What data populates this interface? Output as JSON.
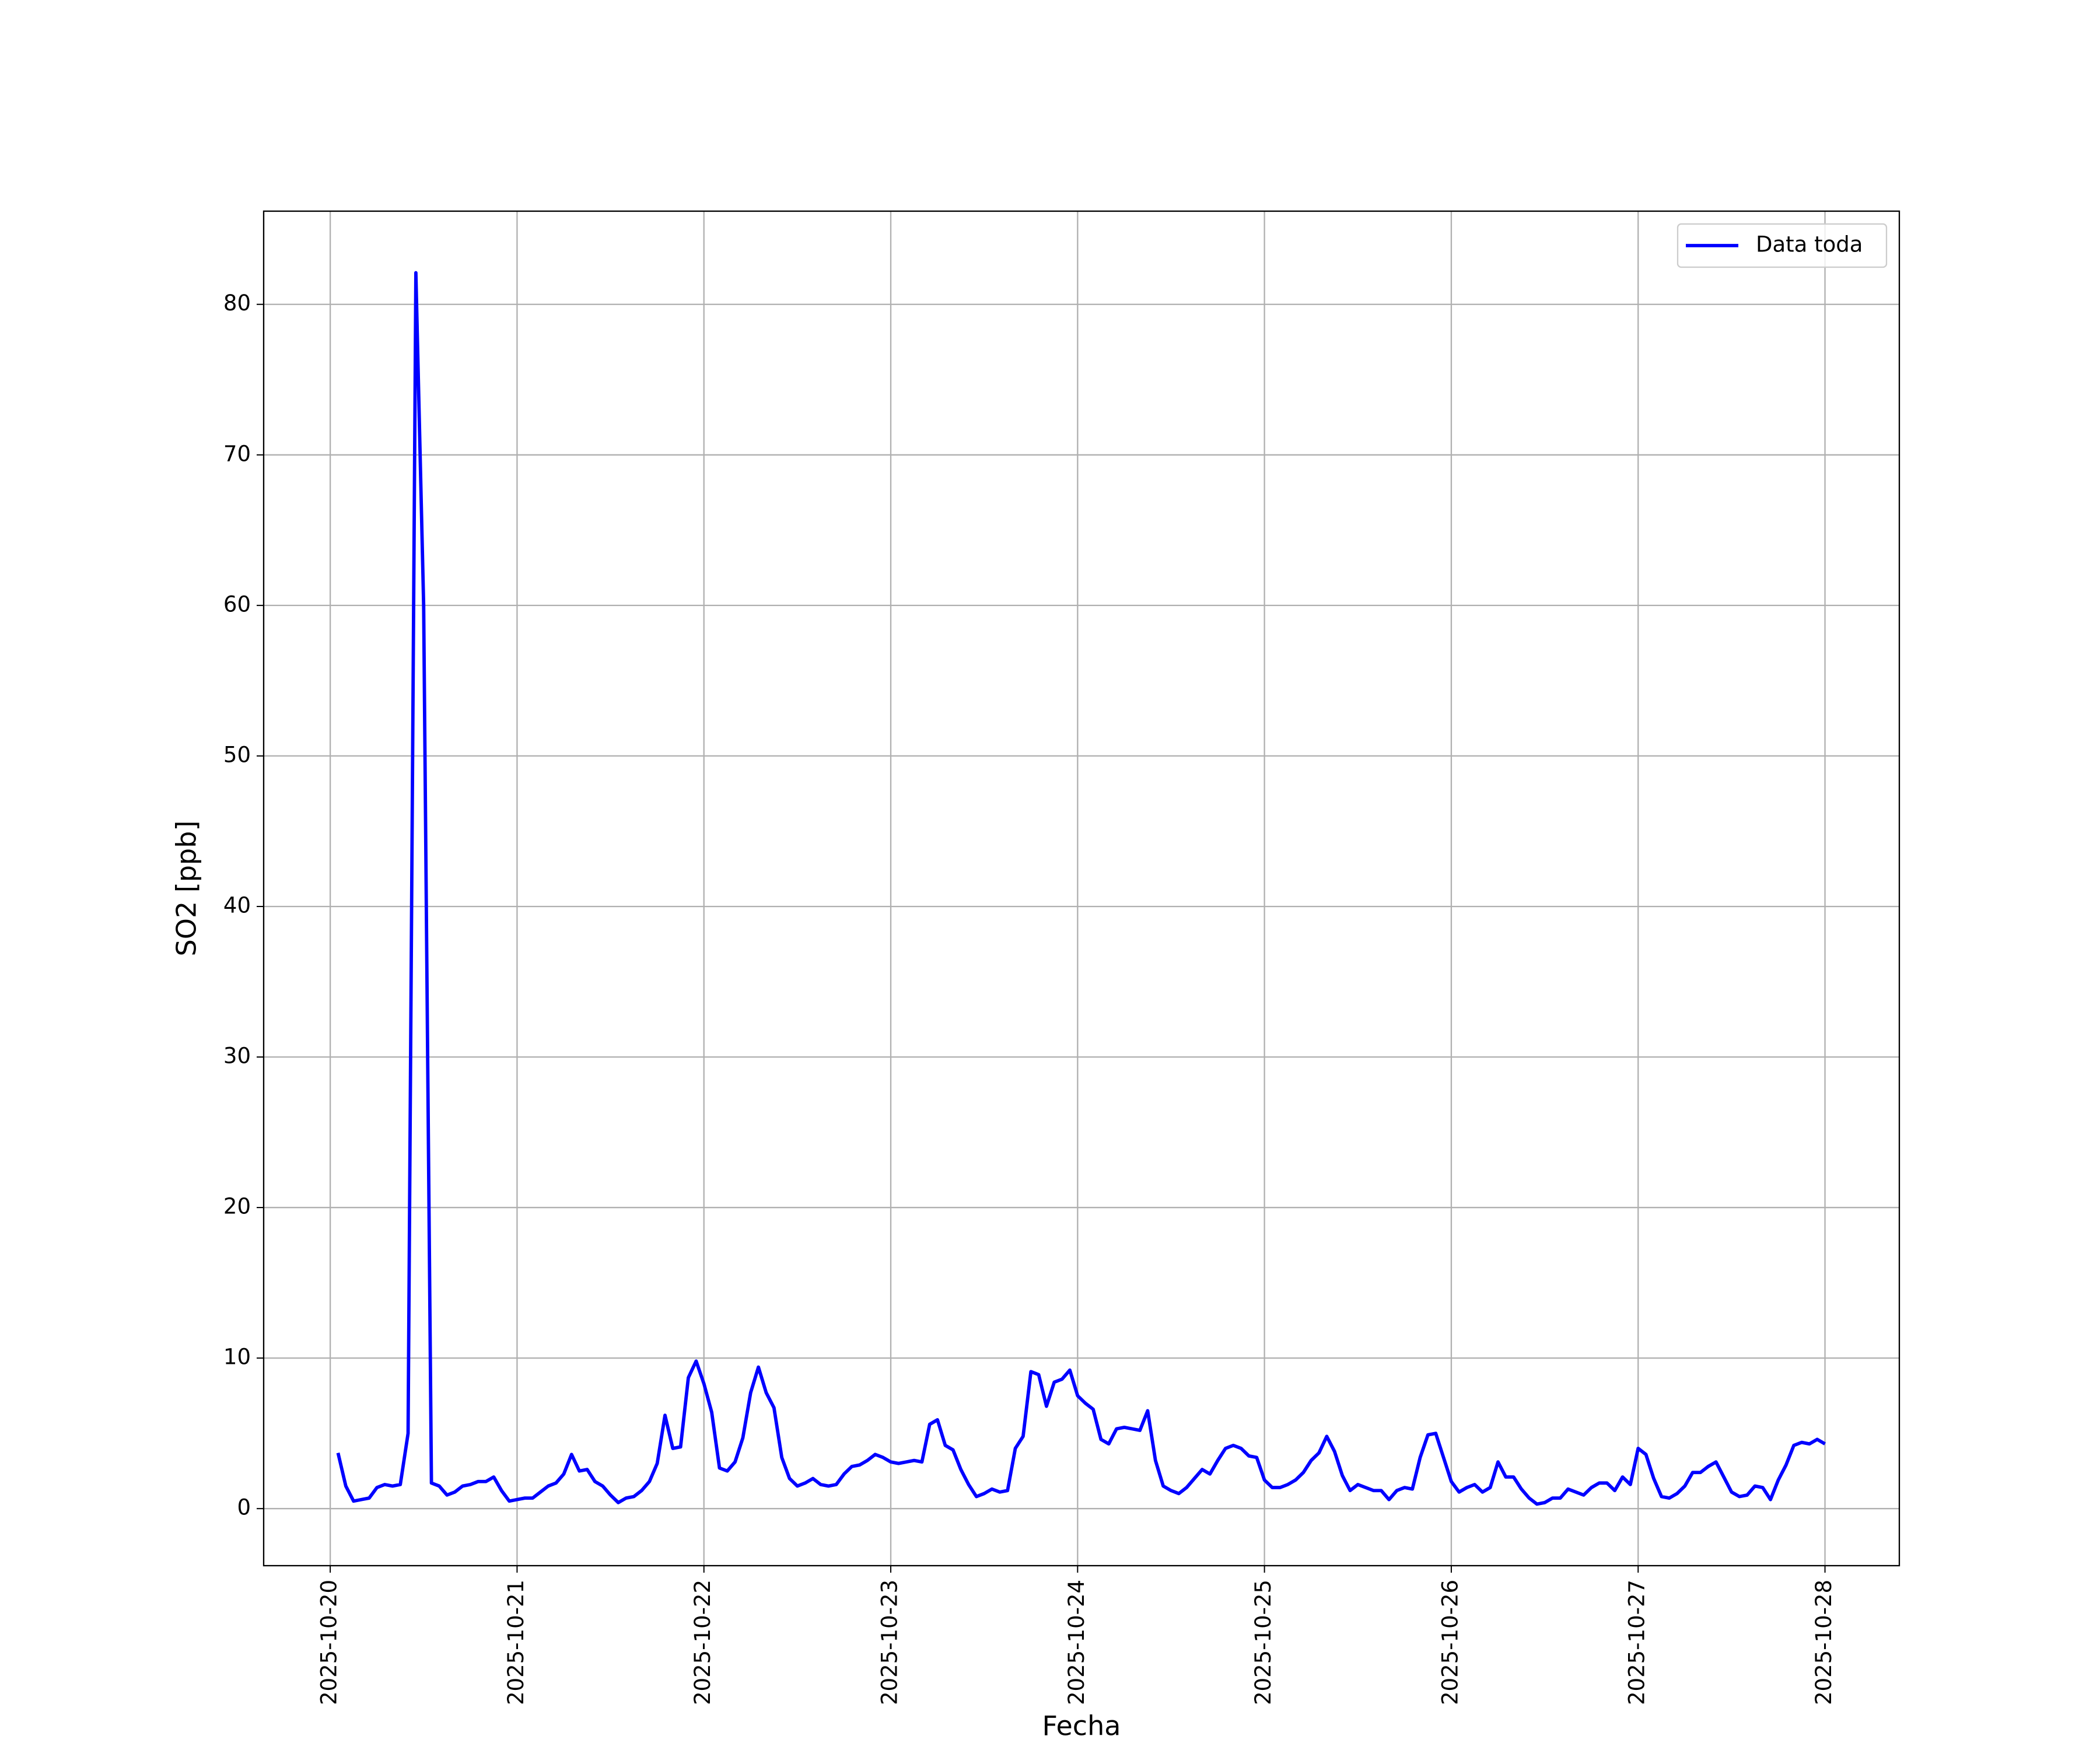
{
  "chart_data": {
    "type": "line",
    "xlabel": "Fecha",
    "ylabel": "SO2 [ppb]",
    "x": [
      "2025-10-20 01:00",
      "2025-10-20 02:00",
      "2025-10-20 03:00",
      "2025-10-20 04:00",
      "2025-10-20 05:00",
      "2025-10-20 06:00",
      "2025-10-20 07:00",
      "2025-10-20 08:00",
      "2025-10-20 09:00",
      "2025-10-20 10:00",
      "2025-10-20 11:00",
      "2025-10-20 12:00",
      "2025-10-20 13:00",
      "2025-10-20 14:00",
      "2025-10-20 15:00",
      "2025-10-20 16:00",
      "2025-10-20 17:00",
      "2025-10-20 18:00",
      "2025-10-20 19:00",
      "2025-10-20 20:00",
      "2025-10-20 21:00",
      "2025-10-20 22:00",
      "2025-10-20 23:00",
      "2025-10-21 00:00",
      "2025-10-21 01:00",
      "2025-10-21 02:00",
      "2025-10-21 03:00",
      "2025-10-21 04:00",
      "2025-10-21 05:00",
      "2025-10-21 06:00",
      "2025-10-21 07:00",
      "2025-10-21 08:00",
      "2025-10-21 09:00",
      "2025-10-21 10:00",
      "2025-10-21 11:00",
      "2025-10-21 12:00",
      "2025-10-21 13:00",
      "2025-10-21 14:00",
      "2025-10-21 15:00",
      "2025-10-21 16:00",
      "2025-10-21 17:00",
      "2025-10-21 18:00",
      "2025-10-21 19:00",
      "2025-10-21 20:00",
      "2025-10-21 21:00",
      "2025-10-21 22:00",
      "2025-10-21 23:00",
      "2025-10-22 00:00",
      "2025-10-22 01:00",
      "2025-10-22 02:00",
      "2025-10-22 03:00",
      "2025-10-22 04:00",
      "2025-10-22 05:00",
      "2025-10-22 06:00",
      "2025-10-22 07:00",
      "2025-10-22 08:00",
      "2025-10-22 09:00",
      "2025-10-22 10:00",
      "2025-10-22 11:00",
      "2025-10-22 12:00",
      "2025-10-22 13:00",
      "2025-10-22 14:00",
      "2025-10-22 15:00",
      "2025-10-22 16:00",
      "2025-10-22 17:00",
      "2025-10-22 18:00",
      "2025-10-22 19:00",
      "2025-10-22 20:00",
      "2025-10-22 21:00",
      "2025-10-22 22:00",
      "2025-10-22 23:00",
      "2025-10-23 00:00",
      "2025-10-23 01:00",
      "2025-10-23 02:00",
      "2025-10-23 03:00",
      "2025-10-23 04:00",
      "2025-10-23 05:00",
      "2025-10-23 06:00",
      "2025-10-23 07:00",
      "2025-10-23 08:00",
      "2025-10-23 09:00",
      "2025-10-23 10:00",
      "2025-10-23 11:00",
      "2025-10-23 12:00",
      "2025-10-23 13:00",
      "2025-10-23 14:00",
      "2025-10-23 15:00",
      "2025-10-23 16:00",
      "2025-10-23 17:00",
      "2025-10-23 18:00",
      "2025-10-23 19:00",
      "2025-10-23 20:00",
      "2025-10-23 21:00",
      "2025-10-23 22:00",
      "2025-10-23 23:00",
      "2025-10-24 00:00",
      "2025-10-24 01:00",
      "2025-10-24 02:00",
      "2025-10-24 03:00",
      "2025-10-24 04:00",
      "2025-10-24 05:00",
      "2025-10-24 06:00",
      "2025-10-24 07:00",
      "2025-10-24 08:00",
      "2025-10-24 09:00",
      "2025-10-24 10:00",
      "2025-10-24 11:00",
      "2025-10-24 12:00",
      "2025-10-24 13:00",
      "2025-10-24 14:00",
      "2025-10-24 15:00",
      "2025-10-24 16:00",
      "2025-10-24 17:00",
      "2025-10-24 18:00",
      "2025-10-24 19:00",
      "2025-10-24 20:00",
      "2025-10-24 21:00",
      "2025-10-24 22:00",
      "2025-10-24 23:00",
      "2025-10-25 00:00",
      "2025-10-25 01:00",
      "2025-10-25 02:00",
      "2025-10-25 03:00",
      "2025-10-25 04:00",
      "2025-10-25 05:00",
      "2025-10-25 06:00",
      "2025-10-25 07:00",
      "2025-10-25 08:00",
      "2025-10-25 09:00",
      "2025-10-25 10:00",
      "2025-10-25 11:00",
      "2025-10-25 12:00",
      "2025-10-25 13:00",
      "2025-10-25 14:00",
      "2025-10-25 15:00",
      "2025-10-25 16:00",
      "2025-10-25 17:00",
      "2025-10-25 18:00",
      "2025-10-25 19:00",
      "2025-10-25 20:00",
      "2025-10-25 21:00",
      "2025-10-25 22:00",
      "2025-10-25 23:00",
      "2025-10-26 00:00",
      "2025-10-26 01:00",
      "2025-10-26 02:00",
      "2025-10-26 03:00",
      "2025-10-26 04:00",
      "2025-10-26 05:00",
      "2025-10-26 06:00",
      "2025-10-26 07:00",
      "2025-10-26 08:00",
      "2025-10-26 09:00",
      "2025-10-26 10:00",
      "2025-10-26 11:00",
      "2025-10-26 12:00",
      "2025-10-26 13:00",
      "2025-10-26 14:00",
      "2025-10-26 15:00",
      "2025-10-26 16:00",
      "2025-10-26 17:00",
      "2025-10-26 18:00",
      "2025-10-26 19:00",
      "2025-10-26 20:00",
      "2025-10-26 21:00",
      "2025-10-26 22:00",
      "2025-10-26 23:00",
      "2025-10-27 00:00",
      "2025-10-27 01:00",
      "2025-10-27 02:00",
      "2025-10-27 03:00",
      "2025-10-27 04:00",
      "2025-10-27 05:00",
      "2025-10-27 06:00",
      "2025-10-27 07:00",
      "2025-10-27 08:00",
      "2025-10-27 09:00",
      "2025-10-27 10:00",
      "2025-10-27 11:00",
      "2025-10-27 12:00",
      "2025-10-27 13:00",
      "2025-10-27 14:00",
      "2025-10-27 15:00",
      "2025-10-27 16:00",
      "2025-10-27 17:00",
      "2025-10-27 18:00",
      "2025-10-27 19:00",
      "2025-10-27 20:00",
      "2025-10-27 21:00",
      "2025-10-27 22:00",
      "2025-10-27 23:00",
      "2025-10-28 00:00"
    ],
    "series": [
      {
        "name": "Data toda",
        "color": "#0000ff",
        "values": [
          3.7,
          1.5,
          0.5,
          0.6,
          0.7,
          1.4,
          1.6,
          1.5,
          1.6,
          5.0,
          82.1,
          60,
          1.7,
          1.5,
          0.9,
          1.1,
          1.5,
          1.6,
          1.8,
          1.8,
          2.1,
          1.2,
          0.5,
          0.6,
          0.7,
          0.7,
          1.1,
          1.5,
          1.7,
          2.3,
          3.6,
          2.5,
          2.6,
          1.8,
          1.5,
          0.9,
          0.4,
          0.7,
          0.8,
          1.2,
          1.8,
          3.0,
          6.2,
          4.0,
          4.1,
          8.7,
          9.8,
          8.3,
          6.4,
          2.7,
          2.5,
          3.1,
          4.7,
          7.7,
          9.4,
          7.7,
          6.7,
          3.4,
          2.0,
          1.5,
          1.7,
          2.0,
          1.6,
          1.5,
          1.6,
          2.3,
          2.8,
          2.9,
          3.2,
          3.6,
          3.4,
          3.1,
          3.0,
          3.1,
          3.2,
          3.1,
          5.6,
          5.9,
          4.2,
          3.9,
          2.6,
          1.6,
          0.8,
          1.0,
          1.3,
          1.1,
          1.2,
          4.0,
          4.8,
          9.1,
          8.9,
          6.8,
          8.4,
          8.6,
          9.2,
          7.5,
          7.0,
          6.6,
          4.6,
          4.3,
          5.3,
          5.4,
          5.3,
          5.2,
          6.5,
          3.2,
          1.5,
          1.2,
          1.0,
          1.4,
          2.0,
          2.6,
          2.3,
          3.2,
          4.0,
          4.2,
          4.0,
          3.5,
          3.4,
          1.9,
          1.4,
          1.4,
          1.6,
          1.9,
          2.4,
          3.2,
          3.7,
          4.8,
          3.8,
          2.2,
          1.2,
          1.6,
          1.4,
          1.2,
          1.2,
          0.6,
          1.2,
          1.4,
          1.3,
          3.4,
          4.9,
          5.0,
          3.4,
          1.8,
          1.1,
          1.4,
          1.6,
          1.1,
          1.4,
          3.1,
          2.1,
          2.1,
          1.3,
          0.7,
          0.3,
          0.4,
          0.7,
          0.7,
          1.3,
          1.1,
          0.9,
          1.4,
          1.7,
          1.7,
          1.2,
          2.1,
          1.6,
          4.0,
          3.6,
          2.0,
          0.8,
          0.7,
          1.0,
          1.5,
          2.4,
          2.4,
          2.8,
          3.1,
          2.1,
          1.1,
          0.8,
          0.9,
          1.5,
          1.4,
          0.6,
          1.9,
          2.9,
          4.2,
          4.4,
          4.3,
          4.6,
          4.3
        ]
      }
    ],
    "xlim": [
      "2025-10-19 15:27",
      "2025-10-28 09:33"
    ],
    "xticks": [
      "2025-10-20",
      "2025-10-21",
      "2025-10-22",
      "2025-10-23",
      "2025-10-24",
      "2025-10-25",
      "2025-10-26",
      "2025-10-27",
      "2025-10-28"
    ],
    "ylim": [
      -3.79,
      86.19
    ],
    "yticks": [
      0,
      10,
      20,
      30,
      40,
      50,
      60,
      70,
      80
    ],
    "grid": true,
    "legend": "upper right"
  }
}
